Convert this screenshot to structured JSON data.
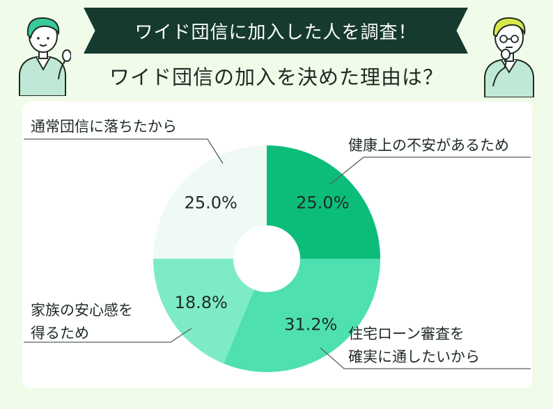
{
  "header": {
    "banner_title": "ワイド団信に加入した人を調査！",
    "subtitle": "ワイド団信の加入を決めた理由は？"
  },
  "colors": {
    "background": "#f1fbe9",
    "banner": "#163a30",
    "card": "#ffffff"
  },
  "chart_data": {
    "type": "pie",
    "donut": true,
    "title": "ワイド団信の加入を決めた理由は？",
    "slices": [
      {
        "label_lines": [
          "健康上の不安があるため"
        ],
        "value": 25.0,
        "display": "25.0%",
        "color": "#0cbd7a"
      },
      {
        "label_lines": [
          "住宅ローン審査を",
          "確実に通したいから"
        ],
        "value": 31.2,
        "display": "31.2%",
        "color": "#4ee0b0"
      },
      {
        "label_lines": [
          "家族の安心感を",
          "得るため"
        ],
        "value": 18.8,
        "display": "18.8%",
        "color": "#7eebc8"
      },
      {
        "label_lines": [
          "通常団信に落ちたから"
        ],
        "value": 25.0,
        "display": "25.0%",
        "color": "#effaf4"
      }
    ],
    "start": "12 o'clock",
    "direction": "clockwise"
  }
}
